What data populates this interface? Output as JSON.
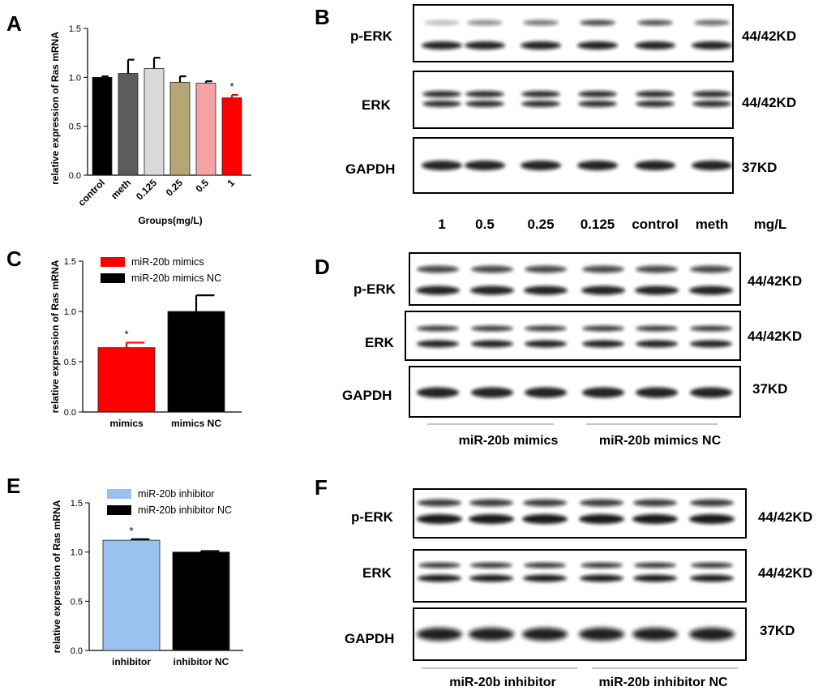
{
  "panel_letters": [
    "A",
    "B",
    "C",
    "D",
    "E",
    "F"
  ],
  "chart_data": [
    {
      "type": "bar",
      "panel": "A",
      "categories": [
        "control",
        "meth",
        "0.125",
        "0.25",
        "0.5",
        "1"
      ],
      "values": [
        1.0,
        1.04,
        1.09,
        0.95,
        0.94,
        0.79
      ],
      "errors": [
        0.01,
        0.14,
        0.11,
        0.06,
        0.02,
        0.03
      ],
      "colors": [
        "#000000",
        "#5c5c5c",
        "#d9d9d9",
        "#b5a676",
        "#f5a3a3",
        "#ff0000"
      ],
      "significance": [
        "",
        "",
        "",
        "",
        "",
        "*"
      ],
      "xlabel": "Groups(mg/L)",
      "ylabel": "relative expression of Ras mRNA",
      "ylim": [
        0,
        1.5
      ],
      "yticks": [
        "0.0",
        "0.5",
        "1.0",
        "1.5"
      ],
      "yticks_values": [
        0,
        0.5,
        1.0,
        1.5
      ]
    },
    {
      "type": "bar",
      "panel": "C",
      "categories": [
        "mimics",
        "mimics NC"
      ],
      "values": [
        0.64,
        1.0
      ],
      "errors": [
        0.05,
        0.16
      ],
      "colors": [
        "#ff0000",
        "#000000"
      ],
      "significance": [
        "*",
        ""
      ],
      "legend": [
        {
          "label": "miR-20b mimics",
          "color": "#ff0000"
        },
        {
          "label": "miR-20b mimics NC",
          "color": "#000000"
        }
      ],
      "xlabel": "",
      "ylabel": "relative expression of Ras mRNA",
      "ylim": [
        0,
        1.5
      ],
      "yticks": [
        "0.0",
        "0.5",
        "1.0",
        "1.5"
      ],
      "yticks_values": [
        0,
        0.5,
        1.0,
        1.5
      ]
    },
    {
      "type": "bar",
      "panel": "E",
      "categories": [
        "inhibitor",
        "inhibitor NC"
      ],
      "values": [
        1.12,
        1.0
      ],
      "errors": [
        0.01,
        0.01
      ],
      "colors": [
        "#99c2f0",
        "#000000"
      ],
      "significance": [
        "*",
        ""
      ],
      "legend": [
        {
          "label": "miR-20b inhibitor",
          "color": "#99c2f0"
        },
        {
          "label": "miR-20b inhibitor NC",
          "color": "#000000"
        }
      ],
      "xlabel": "",
      "ylabel": "relative expression of Ras mRNA",
      "ylim": [
        0,
        1.5
      ],
      "yticks": [
        "0.0",
        "0.5",
        "1.0",
        "1.5"
      ],
      "yticks_values": [
        0,
        0.5,
        1.0,
        1.5
      ]
    }
  ],
  "blots": {
    "B": {
      "rows": [
        {
          "label": "p-ERK",
          "size": "44/42KD"
        },
        {
          "label": "ERK",
          "size": "44/42KD"
        },
        {
          "label": "GAPDH",
          "size": "37KD"
        }
      ],
      "lanes": [
        "1",
        "0.5",
        "0.25",
        "0.125",
        "control",
        "meth"
      ],
      "unit": "mg/L"
    },
    "D": {
      "rows": [
        {
          "label": "p-ERK",
          "size": "44/42KD"
        },
        {
          "label": "ERK",
          "size": "44/42KD"
        },
        {
          "label": "GAPDH",
          "size": "37KD"
        }
      ],
      "groups": [
        "miR-20b mimics",
        "miR-20b mimics NC"
      ]
    },
    "F": {
      "rows": [
        {
          "label": "p-ERK",
          "size": "44/42KD"
        },
        {
          "label": "ERK",
          "size": "44/42KD"
        },
        {
          "label": "GAPDH",
          "size": "37KD"
        }
      ],
      "groups": [
        "miR-20b inhibitor",
        "miR-20b inhibitor NC"
      ]
    }
  }
}
